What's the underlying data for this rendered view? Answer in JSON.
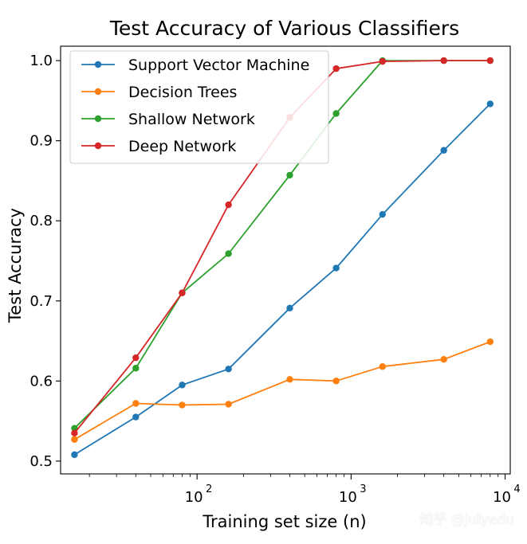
{
  "chart_data": {
    "type": "line",
    "title": "Test Accuracy of Various Classifiers",
    "xlabel": "Training set size (n)",
    "ylabel": "Test Accuracy",
    "xscale": "log",
    "xlim": [
      13,
      10800
    ],
    "ylim": [
      0.484,
      1.018
    ],
    "x_ticks": [
      100,
      1000,
      10000
    ],
    "x_tick_labels": [
      {
        "base": "10",
        "exp": "2"
      },
      {
        "base": "10",
        "exp": "3"
      },
      {
        "base": "10",
        "exp": "4"
      }
    ],
    "y_ticks": [
      0.5,
      0.6,
      0.7,
      0.8,
      0.9,
      1.0
    ],
    "y_tick_labels": [
      "0.5",
      "0.6",
      "0.7",
      "0.8",
      "0.9",
      "1.0"
    ],
    "grid": false,
    "legend_position": "top-left",
    "x": [
      16,
      40,
      80,
      160,
      400,
      800,
      1600,
      4000,
      8000
    ],
    "series": [
      {
        "name": "Support Vector Machine",
        "color": "#1f77b4",
        "values": [
          0.508,
          0.555,
          0.595,
          0.615,
          0.691,
          0.741,
          0.808,
          0.888,
          0.946
        ]
      },
      {
        "name": "Decision Trees",
        "color": "#ff7f0e",
        "values": [
          0.527,
          0.572,
          0.57,
          0.571,
          0.602,
          0.6,
          0.618,
          0.627,
          0.649
        ]
      },
      {
        "name": "Shallow Network",
        "color": "#2ca02c",
        "values": [
          0.541,
          0.616,
          0.71,
          0.759,
          0.857,
          0.934,
          1.0,
          1.0,
          1.0
        ]
      },
      {
        "name": "Deep Network",
        "color": "#d62728",
        "values": [
          0.535,
          0.629,
          0.71,
          0.82,
          0.929,
          0.99,
          0.999,
          1.0,
          1.0
        ]
      }
    ]
  },
  "watermark": "知乎 @julyedu"
}
